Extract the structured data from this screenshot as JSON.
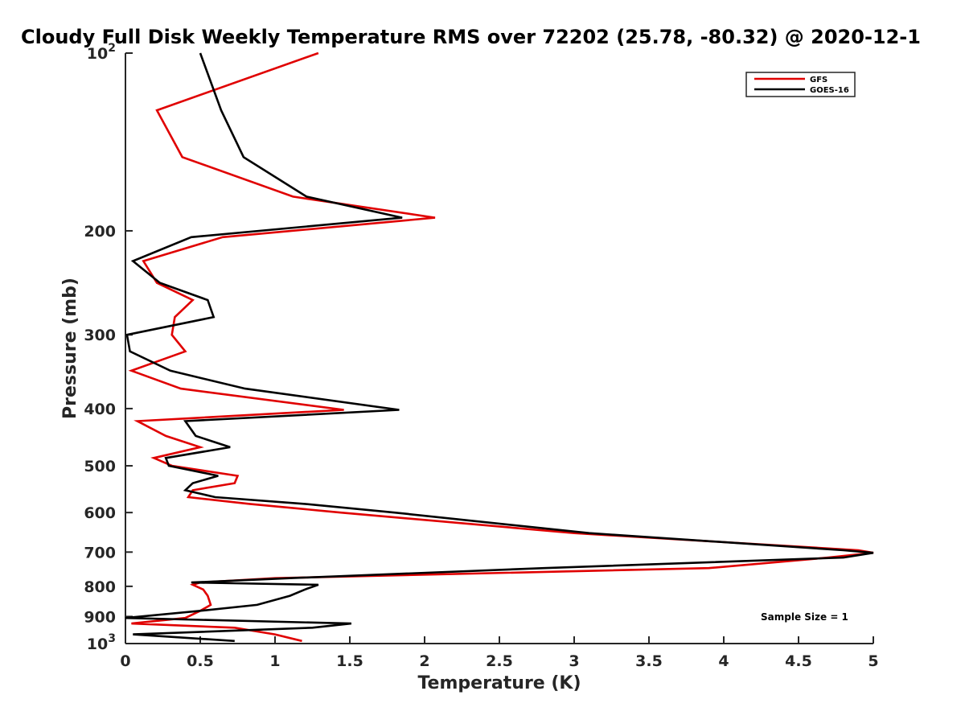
{
  "chart_data": {
    "type": "line",
    "title": "Cloudy Full Disk Weekly Temperature RMS over 72202 (25.78, -80.32) @ 2020-12-1",
    "xlabel": "Temperature (K)",
    "ylabel": "Pressure (mb)",
    "xlim": [
      0,
      5
    ],
    "ylim": [
      100,
      1000
    ],
    "y_scale": "log",
    "y_reversed": true,
    "grid": false,
    "legend_position": "top-right",
    "annotation": "Sample Size = 1",
    "x_ticks": [
      "0",
      "0.5",
      "1",
      "1.5",
      "2",
      "2.5",
      "3",
      "3.5",
      "4",
      "4.5",
      "5"
    ],
    "y_ticks": [
      {
        "value": 100,
        "base": "10",
        "exp": "2"
      },
      {
        "value": 200,
        "label": "200"
      },
      {
        "value": 300,
        "label": "300"
      },
      {
        "value": 400,
        "label": "400"
      },
      {
        "value": 500,
        "label": "500"
      },
      {
        "value": 600,
        "label": "600"
      },
      {
        "value": 700,
        "label": "700"
      },
      {
        "value": 800,
        "label": "800"
      },
      {
        "value": 900,
        "label": "900"
      },
      {
        "value": 1000,
        "base": "10",
        "exp": "3"
      }
    ],
    "series": [
      {
        "name": "GFS",
        "color": "#e00000",
        "points": [
          [
            1.29,
            100
          ],
          [
            0.21,
            125
          ],
          [
            0.38,
            150
          ],
          [
            1.12,
            175
          ],
          [
            2.07,
            190
          ],
          [
            0.65,
            205
          ],
          [
            0.12,
            225
          ],
          [
            0.21,
            245
          ],
          [
            0.45,
            262
          ],
          [
            0.33,
            280
          ],
          [
            0.31,
            300
          ],
          [
            0.4,
            320
          ],
          [
            0.04,
            345
          ],
          [
            0.37,
            370
          ],
          [
            1.46,
            402
          ],
          [
            0.08,
            420
          ],
          [
            0.27,
            445
          ],
          [
            0.5,
            465
          ],
          [
            0.19,
            485
          ],
          [
            0.31,
            500
          ],
          [
            0.75,
            520
          ],
          [
            0.73,
            535
          ],
          [
            0.45,
            550
          ],
          [
            0.42,
            565
          ],
          [
            0.83,
            580
          ],
          [
            1.44,
            600
          ],
          [
            3.0,
            650
          ],
          [
            4.9,
            695
          ],
          [
            5.0,
            702
          ],
          [
            4.7,
            715
          ],
          [
            3.9,
            745
          ],
          [
            1.0,
            775
          ],
          [
            0.5,
            788
          ],
          [
            0.45,
            795
          ],
          [
            0.52,
            810
          ],
          [
            0.55,
            830
          ],
          [
            0.57,
            860
          ],
          [
            0.5,
            880
          ],
          [
            0.4,
            905
          ],
          [
            0.04,
            925
          ],
          [
            0.73,
            940
          ],
          [
            1.0,
            965
          ],
          [
            1.18,
            990
          ]
        ]
      },
      {
        "name": "GOES-16",
        "color": "#000000",
        "points": [
          [
            0.5,
            100
          ],
          [
            0.64,
            125
          ],
          [
            0.79,
            150
          ],
          [
            1.21,
            175
          ],
          [
            1.85,
            190
          ],
          [
            0.44,
            205
          ],
          [
            0.05,
            225
          ],
          [
            0.23,
            245
          ],
          [
            0.55,
            262
          ],
          [
            0.59,
            280
          ],
          [
            0.01,
            300
          ],
          [
            0.03,
            320
          ],
          [
            0.3,
            345
          ],
          [
            0.8,
            370
          ],
          [
            1.83,
            402
          ],
          [
            0.4,
            420
          ],
          [
            0.47,
            445
          ],
          [
            0.7,
            465
          ],
          [
            0.27,
            485
          ],
          [
            0.29,
            500
          ],
          [
            0.62,
            520
          ],
          [
            0.45,
            535
          ],
          [
            0.4,
            550
          ],
          [
            0.6,
            565
          ],
          [
            1.2,
            580
          ],
          [
            1.8,
            600
          ],
          [
            3.1,
            650
          ],
          [
            4.8,
            695
          ],
          [
            5.0,
            702
          ],
          [
            4.8,
            715
          ],
          [
            2.8,
            745
          ],
          [
            1.1,
            775
          ],
          [
            0.44,
            788
          ],
          [
            1.29,
            795
          ],
          [
            1.2,
            810
          ],
          [
            1.1,
            830
          ],
          [
            0.88,
            860
          ],
          [
            0.5,
            880
          ],
          [
            0.0,
            905
          ],
          [
            1.51,
            925
          ],
          [
            1.25,
            940
          ],
          [
            0.05,
            965
          ],
          [
            0.73,
            990
          ]
        ]
      }
    ]
  }
}
